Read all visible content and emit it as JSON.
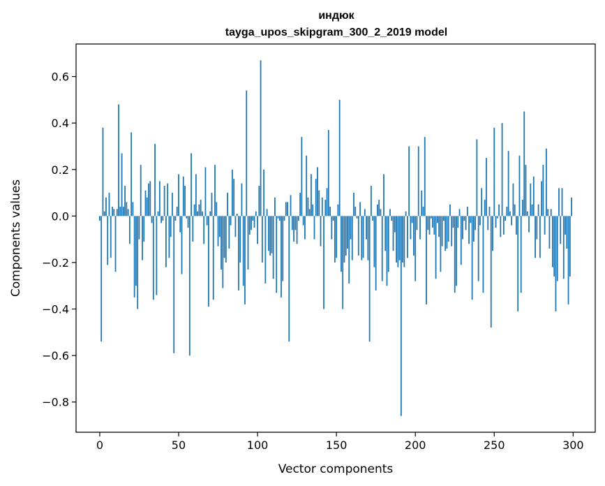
{
  "chart_data": {
    "type": "bar",
    "title_line1": "индюк",
    "title_line2": "tayga_upos_skipgram_300_2_2019 model",
    "xlabel": "Vector components",
    "ylabel": "Components values",
    "xlim": [
      -15,
      314
    ],
    "ylim": [
      -0.93,
      0.74
    ],
    "xticks": [
      0,
      50,
      100,
      150,
      200,
      250,
      300
    ],
    "yticks": [
      -0.8,
      -0.6,
      -0.4,
      -0.2,
      0.0,
      0.2,
      0.4,
      0.6
    ],
    "ytick_labels": [
      "−0.8",
      "−0.6",
      "−0.4",
      "−0.2",
      "0.0",
      "0.2",
      "0.4",
      "0.6"
    ],
    "bar_color": "#1f77b4",
    "values": [
      -0.02,
      -0.54,
      0.38,
      0.02,
      0.08,
      -0.21,
      0.1,
      -0.18,
      0.04,
      0.03,
      -0.24,
      0.03,
      0.48,
      0.04,
      0.27,
      0.04,
      0.13,
      0.06,
      0.03,
      -0.12,
      0.36,
      0.06,
      -0.35,
      -0.3,
      -0.4,
      -0.1,
      0.22,
      -0.19,
      -0.11,
      0.11,
      0.08,
      0.14,
      0.15,
      -0.03,
      -0.36,
      0.31,
      -0.34,
      0.02,
      0.15,
      -0.03,
      -0.02,
      0.13,
      -0.22,
      0.14,
      -0.18,
      -0.09,
      0.1,
      -0.59,
      -0.02,
      0.04,
      0.18,
      -0.07,
      -0.25,
      0.17,
      0.13,
      -0.01,
      -0.05,
      -0.6,
      0.27,
      -0.11,
      0.05,
      0.18,
      0.02,
      0.05,
      0.07,
      0.02,
      -0.12,
      0.21,
      -0.04,
      -0.39,
      0.02,
      0.1,
      -0.36,
      0.22,
      0.06,
      -0.13,
      -0.09,
      -0.23,
      -0.31,
      -0.18,
      -0.2,
      0.1,
      -0.14,
      -0.04,
      0.2,
      0.16,
      -0.09,
      0.01,
      -0.32,
      -0.2,
      0.14,
      -0.3,
      -0.38,
      0.54,
      -0.23,
      -0.08,
      -0.06,
      -0.02,
      -0.05,
      0.02,
      -0.12,
      0.13,
      0.67,
      -0.2,
      0.2,
      -0.29,
      0.03,
      -0.15,
      -0.17,
      -0.16,
      -0.27,
      0.08,
      -0.33,
      -0.01,
      -0.02,
      -0.35,
      -0.28,
      -0.02,
      0.06,
      0.06,
      -0.54,
      0.09,
      -0.06,
      -0.11,
      -0.06,
      -0.12,
      -0.02,
      0.1,
      0.34,
      -0.04,
      -0.1,
      0.26,
      0.08,
      0.03,
      0.18,
      0.05,
      -0.1,
      0.16,
      0.21,
      0.11,
      -0.13,
      0.08,
      -0.4,
      0.07,
      0.12,
      0.37,
      0.04,
      -0.1,
      -0.02,
      -0.2,
      -0.18,
      0.05,
      0.5,
      -0.24,
      -0.4,
      -0.2,
      -0.17,
      -0.14,
      -0.29,
      -0.1,
      -0.19,
      0.1,
      0.04,
      -0.01,
      -0.17,
      0.06,
      -0.19,
      -0.18,
      0.03,
      -0.1,
      -0.19,
      -0.54,
      0.13,
      -0.02,
      -0.22,
      -0.32,
      0.05,
      0.07,
      0.03,
      -0.28,
      0.18,
      -0.15,
      -0.3,
      -0.24,
      0.03,
      -0.02,
      -0.15,
      -0.07,
      -0.2,
      -0.22,
      -0.19,
      -0.86,
      -0.2,
      -0.22,
      0.02,
      -0.18,
      0.3,
      -0.1,
      -0.03,
      -0.17,
      -0.28,
      -0.06,
      0.3,
      -0.1,
      0.11,
      0.04,
      0.34,
      -0.38,
      -0.06,
      -0.08,
      -0.01,
      -0.05,
      -0.08,
      -0.27,
      -0.03,
      -0.09,
      -0.24,
      -0.13,
      -0.02,
      -0.15,
      -0.14,
      -0.11,
      0.05,
      -0.13,
      -0.05,
      -0.33,
      -0.3,
      -0.05,
      0.03,
      -0.21,
      -0.1,
      -0.02,
      -0.06,
      0.04,
      -0.12,
      -0.03,
      -0.36,
      -0.11,
      -0.06,
      0.33,
      -0.28,
      -0.04,
      0.12,
      -0.33,
      0.07,
      0.25,
      -0.06,
      0.04,
      -0.48,
      -0.15,
      0.38,
      -0.05,
      -0.01,
      0.05,
      -0.09,
      0.4,
      -0.08,
      -0.02,
      0.04,
      0.28,
      0.02,
      -0.04,
      0.14,
      0.05,
      -0.08,
      -0.41,
      0.26,
      -0.33,
      0.07,
      0.45,
      0.22,
      0.02,
      -0.07,
      0.14,
      0.05,
      0.17,
      -0.18,
      -0.1,
      0.05,
      -0.18,
      0.15,
      0.22,
      -0.08,
      0.29,
      0.03,
      -0.14,
      0.03,
      -0.22,
      -0.26,
      -0.41,
      -0.28,
      0.12,
      -0.12,
      0.12,
      -0.27,
      -0.08,
      -0.14,
      -0.38,
      -0.26,
      0.08
    ]
  }
}
